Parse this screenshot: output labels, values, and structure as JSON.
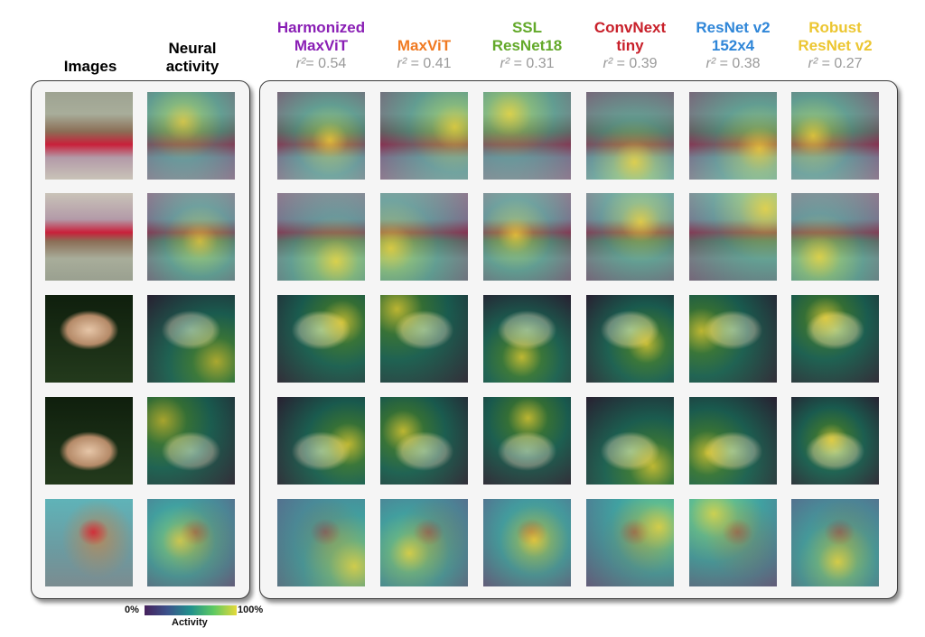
{
  "headers": {
    "images": "Images",
    "neural_activity": [
      "Neural",
      "activity"
    ]
  },
  "models": [
    {
      "name_lines": [
        "Harmonized",
        "MaxViT"
      ],
      "r2_label": "r²",
      "r2": "= 0.54",
      "color": "#8a1fb5"
    },
    {
      "name_lines": [
        "",
        "MaxViT"
      ],
      "r2_label": "r²",
      "r2": " = 0.41",
      "color": "#f07a22"
    },
    {
      "name_lines": [
        "SSL",
        "ResNet18"
      ],
      "r2_label": "r²",
      "r2": " = 0.31",
      "color": "#63a92a"
    },
    {
      "name_lines": [
        "ConvNext",
        "tiny"
      ],
      "r2_label": "r²",
      "r2": " = 0.39",
      "color": "#c8202a"
    },
    {
      "name_lines": [
        "ResNet v2",
        "152x4"
      ],
      "r2_label": "r²",
      "r2": " = 0.38",
      "color": "#2f86d8"
    },
    {
      "name_lines": [
        "Robust",
        "ResNet v2"
      ],
      "r2_label": "r²",
      "r2": " = 0.27",
      "color": "#ecc631"
    }
  ],
  "rows": [
    {
      "subject": "two women seated",
      "orientation": "upright"
    },
    {
      "subject": "two women seated",
      "orientation": "inverted"
    },
    {
      "subject": "mushrooms in grass",
      "orientation": "upright"
    },
    {
      "subject": "mushrooms in grass",
      "orientation": "inverted"
    },
    {
      "subject": "monkeys",
      "orientation": "upright"
    }
  ],
  "colorbar": {
    "min_label": "0%",
    "max_label": "100%",
    "title": "Activity",
    "colors": [
      "#46215c",
      "#3b528b",
      "#21918c",
      "#5ec962",
      "#e5d93a"
    ]
  }
}
